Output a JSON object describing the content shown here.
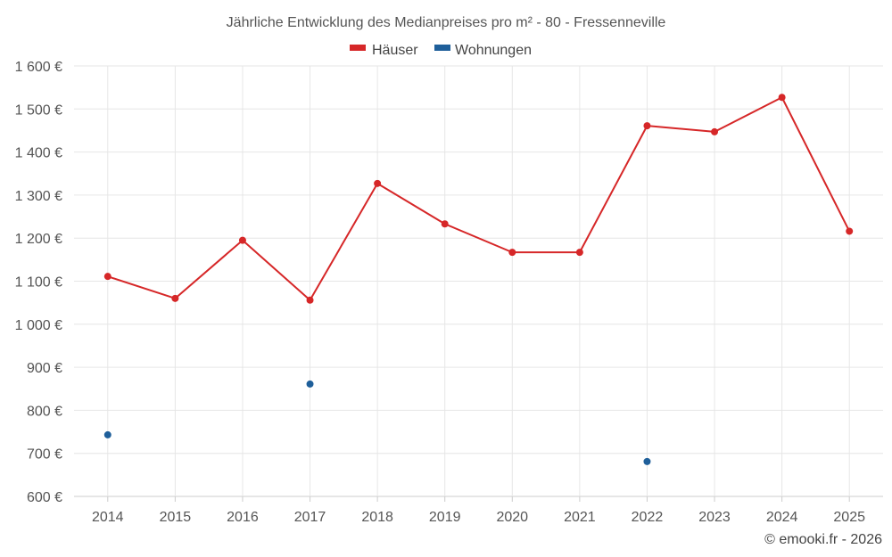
{
  "chart_data": {
    "type": "line",
    "title": "Jährliche Entwicklung des Medianpreises pro m² - 80 - Fressenneville",
    "categories": [
      "2014",
      "2015",
      "2016",
      "2017",
      "2018",
      "2019",
      "2020",
      "2021",
      "2022",
      "2023",
      "2024",
      "2025"
    ],
    "series": [
      {
        "name": "Häuser",
        "color": "#d62728",
        "values": [
          1111,
          1060,
          1195,
          1056,
          1327,
          1233,
          1167,
          1167,
          1461,
          1447,
          1527,
          1216
        ]
      },
      {
        "name": "Wohnungen",
        "color": "#1f5f9a",
        "values": [
          743,
          null,
          null,
          861,
          null,
          null,
          null,
          null,
          681,
          null,
          null,
          null
        ]
      }
    ],
    "ylim": [
      600,
      1600
    ],
    "yticks": [
      600,
      700,
      800,
      900,
      1000,
      1100,
      1200,
      1300,
      1400,
      1500,
      1600
    ],
    "ytick_labels": [
      "600 €",
      "700 €",
      "800 €",
      "900 €",
      "1 000 €",
      "1 100 €",
      "1 200 €",
      "1 300 €",
      "1 400 €",
      "1 500 €",
      "1 600 €"
    ],
    "xlabel": "",
    "ylabel": "",
    "legend_position": "top-center",
    "grid": true
  },
  "credit": "© emooki.fr - 2026"
}
